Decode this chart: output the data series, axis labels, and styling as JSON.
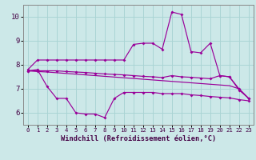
{
  "background_color": "#cce8e8",
  "grid_color": "#aad4d4",
  "line_color": "#990099",
  "x_values": [
    0,
    1,
    2,
    3,
    4,
    5,
    6,
    7,
    8,
    9,
    10,
    11,
    12,
    13,
    14,
    15,
    16,
    17,
    18,
    19,
    20,
    21,
    22,
    23
  ],
  "line1": [
    7.8,
    8.2,
    8.2,
    8.2,
    8.2,
    8.2,
    8.2,
    8.2,
    8.2,
    8.2,
    8.2,
    8.85,
    8.9,
    8.9,
    8.65,
    10.2,
    10.1,
    8.55,
    8.5,
    8.9,
    7.55,
    7.5,
    6.95,
    6.6
  ],
  "line2": [
    7.75,
    7.75,
    7.75,
    7.75,
    7.72,
    7.7,
    7.68,
    7.65,
    7.62,
    7.6,
    7.58,
    7.55,
    7.52,
    7.5,
    7.47,
    7.55,
    7.5,
    7.48,
    7.45,
    7.42,
    7.55,
    7.5,
    7.0,
    6.6
  ],
  "line3": [
    7.75,
    7.72,
    7.7,
    7.67,
    7.64,
    7.61,
    7.58,
    7.55,
    7.52,
    7.49,
    7.46,
    7.43,
    7.4,
    7.37,
    7.34,
    7.31,
    7.28,
    7.25,
    7.22,
    7.19,
    7.16,
    7.13,
    7.0,
    6.6
  ],
  "line4": [
    7.75,
    7.8,
    7.1,
    6.6,
    6.6,
    6.0,
    5.95,
    5.95,
    5.8,
    6.6,
    6.85,
    6.85,
    6.85,
    6.85,
    6.8,
    6.8,
    6.8,
    6.75,
    6.72,
    6.68,
    6.65,
    6.62,
    6.55,
    6.5
  ],
  "ylim": [
    5.5,
    10.5
  ],
  "yticks": [
    6,
    7,
    8,
    9,
    10
  ],
  "xlabel": "Windchill (Refroidissement éolien,°C)"
}
